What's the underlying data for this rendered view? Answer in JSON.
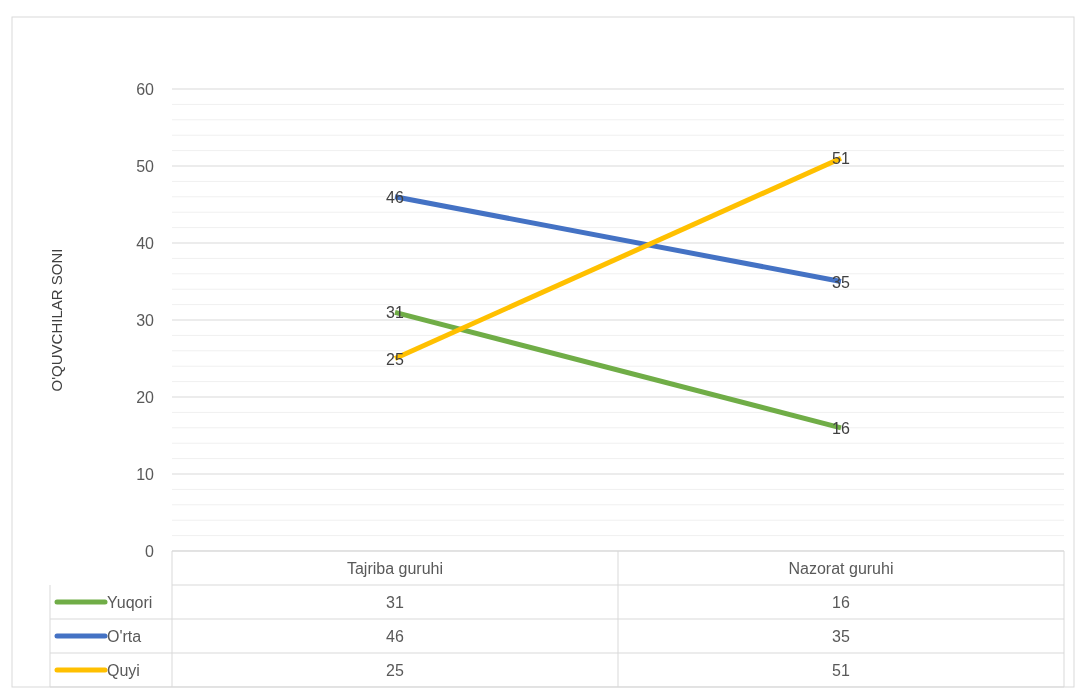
{
  "chart_data": {
    "type": "line",
    "ylabel": "O'QUVCHILAR SONI",
    "categories": [
      "Tajriba guruhi",
      "Nazorat guruhi"
    ],
    "series": [
      {
        "name": "Yuqori",
        "color": "#70ad47",
        "values": [
          31,
          16
        ]
      },
      {
        "name": "O'rta",
        "color": "#4472c4",
        "values": [
          46,
          35
        ]
      },
      {
        "name": "Quyi",
        "color": "#ffc000",
        "values": [
          25,
          51
        ]
      }
    ],
    "annotations": [
      {
        "text": "31",
        "x": "Tajriba guruhi",
        "y": 31
      },
      {
        "text": "16",
        "x": "Nazorat guruhi",
        "y": 16
      },
      {
        "text": "46",
        "x": "Tajriba guruhi",
        "y": 46
      },
      {
        "text": "35",
        "x": "Nazorat guruhi",
        "y": 35
      },
      {
        "text": "25",
        "x": "Tajriba guruhi",
        "y": 25
      },
      {
        "text": "51",
        "x": "Nazorat guruhi",
        "y": 51
      }
    ],
    "ylim": [
      0,
      60
    ],
    "yticks": [
      0,
      {
        "value": 2,
        "label": null
      },
      {
        "value": 4,
        "label": null
      },
      {
        "value": 6,
        "label": null
      },
      {
        "value": 8,
        "label": null
      },
      10,
      {
        "value": 12,
        "label": null
      },
      {
        "value": 14,
        "label": null
      },
      {
        "value": 16,
        "label": null
      },
      {
        "value": 18,
        "label": null
      },
      20,
      {
        "value": 22,
        "label": null
      },
      {
        "value": 24,
        "label": null
      },
      {
        "value": 26,
        "label": null
      },
      {
        "value": 28,
        "label": null
      },
      30,
      {
        "value": 32,
        "label": null
      },
      {
        "value": 34,
        "label": null
      },
      {
        "value": 36,
        "label": null
      },
      {
        "value": 38,
        "label": null
      },
      40,
      {
        "value": 42,
        "label": null
      },
      {
        "value": 44,
        "label": null
      },
      {
        "value": 46,
        "label": null
      },
      {
        "value": 48,
        "label": null
      },
      50,
      {
        "value": 52,
        "label": null
      },
      {
        "value": 54,
        "label": null
      },
      {
        "value": 56,
        "label": null
      },
      {
        "value": 58,
        "label": null
      },
      60
    ],
    "grid": true,
    "legend": "bottom",
    "data_labels": true,
    "marker": "none",
    "line_style": "solid"
  }
}
